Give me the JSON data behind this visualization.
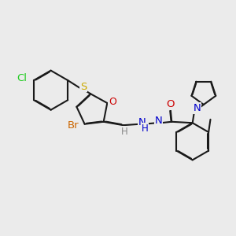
{
  "background_color": "#ebebeb",
  "figsize": [
    3.0,
    3.0
  ],
  "dpi": 100,
  "bond_color": "#1a1a1a",
  "bond_lw": 1.5,
  "dbo": 0.022,
  "colors": {
    "Cl": "#22cc22",
    "S": "#ccaa00",
    "O": "#cc0000",
    "Br": "#cc6600",
    "N": "#0000cc",
    "H": "#888888",
    "C": "#1a1a1a"
  }
}
